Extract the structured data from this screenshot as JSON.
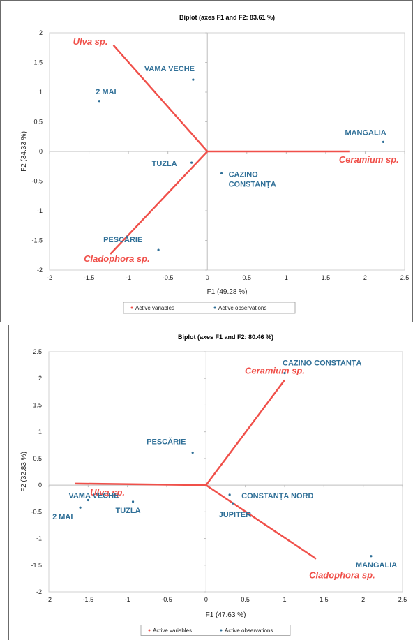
{
  "chart_data": [
    {
      "type": "biplot",
      "title": "Biplot (axes F1 and F2: 83.61 %)",
      "xlabel": "F1 (49.28 %)",
      "ylabel": "F2 (34.33 %)",
      "xlim": [
        -2,
        2.5
      ],
      "ylim": [
        -2,
        2
      ],
      "xticks": [
        "-2",
        "-1.5",
        "-1",
        "-0.5",
        "0",
        "0.5",
        "1",
        "1.5",
        "2",
        "2.5"
      ],
      "yticks": [
        "-2",
        "-1.5",
        "-1",
        "-0.5",
        "0",
        "0.5",
        "1",
        "1.5",
        "2"
      ],
      "grid": false,
      "legend": [
        "Active variables",
        "Active observations"
      ],
      "legend_position": "bottom",
      "colors": {
        "variables": "#f0504a",
        "observations": "#2f6f97"
      },
      "variables": [
        {
          "name": "Ulva sp.",
          "x": -1.19,
          "y": 1.79
        },
        {
          "name": "Ceramium sp.",
          "x": 1.8,
          "y": 0.0
        },
        {
          "name": "Cladophora sp.",
          "x": -1.23,
          "y": -1.73
        }
      ],
      "observations": [
        {
          "name": "VAMA VECHE",
          "x": -0.18,
          "y": 1.21
        },
        {
          "name": "2 MAI",
          "x": -1.37,
          "y": 0.85
        },
        {
          "name": "MANGALIA",
          "x": 2.23,
          "y": 0.16
        },
        {
          "name": "TUZLA",
          "x": -0.2,
          "y": -0.19
        },
        {
          "name": "CAZINO\nCONSTANȚA",
          "x": 0.18,
          "y": -0.37
        },
        {
          "name": "PESCĂRIE",
          "x": -0.62,
          "y": -1.66
        }
      ]
    },
    {
      "type": "biplot",
      "title": "Biplot (axes F1 and F2: 80.46 %)",
      "xlabel": "F1 (47.63 %)",
      "ylabel": "F2 (32.83 %)",
      "xlim": [
        -2,
        2.5
      ],
      "ylim": [
        -2,
        2.5
      ],
      "xticks": [
        "-2",
        "-1.5",
        "-1",
        "-0.5",
        "0",
        "0.5",
        "1",
        "1.5",
        "2",
        "2.5"
      ],
      "yticks": [
        "-2",
        "-1.5",
        "-1",
        "-0.5",
        "0",
        "0.5",
        "1",
        "1.5",
        "2",
        "2.5"
      ],
      "grid": false,
      "legend": [
        "Active variables",
        "Active observations"
      ],
      "legend_position": "bottom",
      "colors": {
        "variables": "#f0504a",
        "observations": "#2f6f97"
      },
      "variables": [
        {
          "name": "Ulva sp.",
          "x": -1.67,
          "y": 0.03
        },
        {
          "name": "Ceramium sp.",
          "x": 1.0,
          "y": 1.97
        },
        {
          "name": "Cladophora sp.",
          "x": 1.4,
          "y": -1.38
        }
      ],
      "observations": [
        {
          "name": "CAZINO CONSTANȚA",
          "x": 1.0,
          "y": 2.1
        },
        {
          "name": "PESCĂRIE",
          "x": -0.17,
          "y": 0.61
        },
        {
          "name": "CONSTANȚA NORD",
          "x": 0.3,
          "y": -0.18
        },
        {
          "name": "JUPITER",
          "x": 0.34,
          "y": -0.34
        },
        {
          "name": "VAMA VECHE",
          "x": -1.5,
          "y": -0.28
        },
        {
          "name": "2 MAI",
          "x": -1.6,
          "y": -0.42
        },
        {
          "name": "TUZLA",
          "x": -0.93,
          "y": -0.31
        },
        {
          "name": "MANGALIA",
          "x": 2.1,
          "y": -1.33
        }
      ]
    }
  ]
}
